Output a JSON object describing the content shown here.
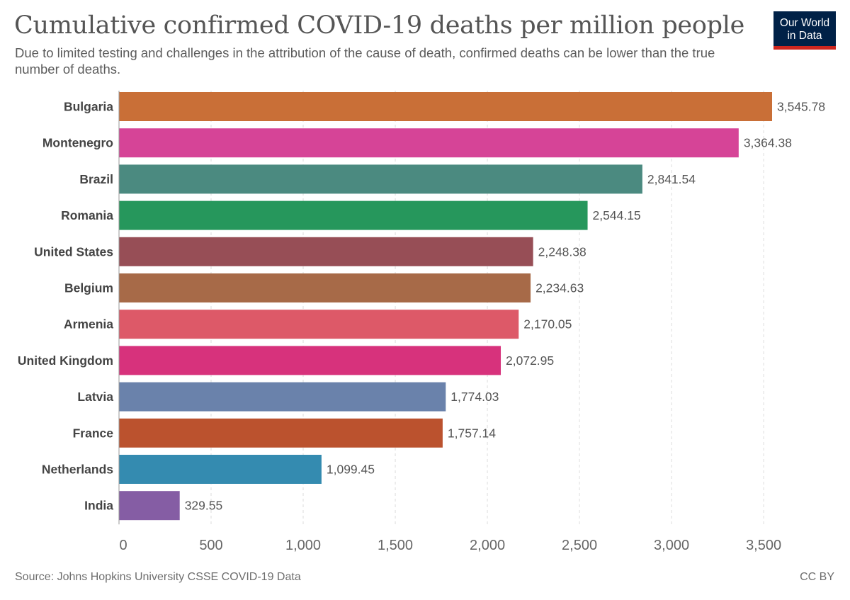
{
  "header": {
    "title": "Cumulative confirmed COVID-19 deaths per million people",
    "subtitle": "Due to limited testing and challenges in the attribution of the cause of death, confirmed deaths can be lower than the true number of deaths.",
    "logo": {
      "line1": "Our World",
      "line2": "in Data",
      "bg": "#002147",
      "accent": "#ce261e"
    }
  },
  "chart_data": {
    "type": "bar",
    "orientation": "horizontal",
    "title": "Cumulative confirmed COVID-19 deaths per million people",
    "categories": [
      "Bulgaria",
      "Montenegro",
      "Brazil",
      "Romania",
      "United States",
      "Belgium",
      "Armenia",
      "United Kingdom",
      "Latvia",
      "France",
      "Netherlands",
      "India"
    ],
    "values": [
      3545.78,
      3364.38,
      2841.54,
      2544.15,
      2248.38,
      2234.63,
      2170.05,
      2072.95,
      1774.03,
      1757.14,
      1099.45,
      329.55
    ],
    "value_labels": [
      "3,545.78",
      "3,364.38",
      "2,841.54",
      "2,544.15",
      "2,248.38",
      "2,234.63",
      "2,170.05",
      "2,072.95",
      "1,774.03",
      "1,757.14",
      "1,099.45",
      "329.55"
    ],
    "colors": [
      "#c96f37",
      "#d64497",
      "#4b8a80",
      "#26975c",
      "#974e56",
      "#a76a48",
      "#dd5968",
      "#d7327c",
      "#6a82ab",
      "#bb522e",
      "#348bb0",
      "#855da4"
    ],
    "xlim": [
      0,
      3600
    ],
    "xticks": [
      0,
      500,
      1000,
      1500,
      2000,
      2500,
      3000,
      3500
    ],
    "xtick_labels": [
      "0",
      "500",
      "1,000",
      "1,500",
      "2,000",
      "2,500",
      "3,000",
      "3,500"
    ],
    "grid": "vertical-dashed",
    "xlabel": "",
    "ylabel": ""
  },
  "footer": {
    "source": "Source: Johns Hopkins University CSSE COVID-19 Data",
    "license": "CC BY"
  }
}
